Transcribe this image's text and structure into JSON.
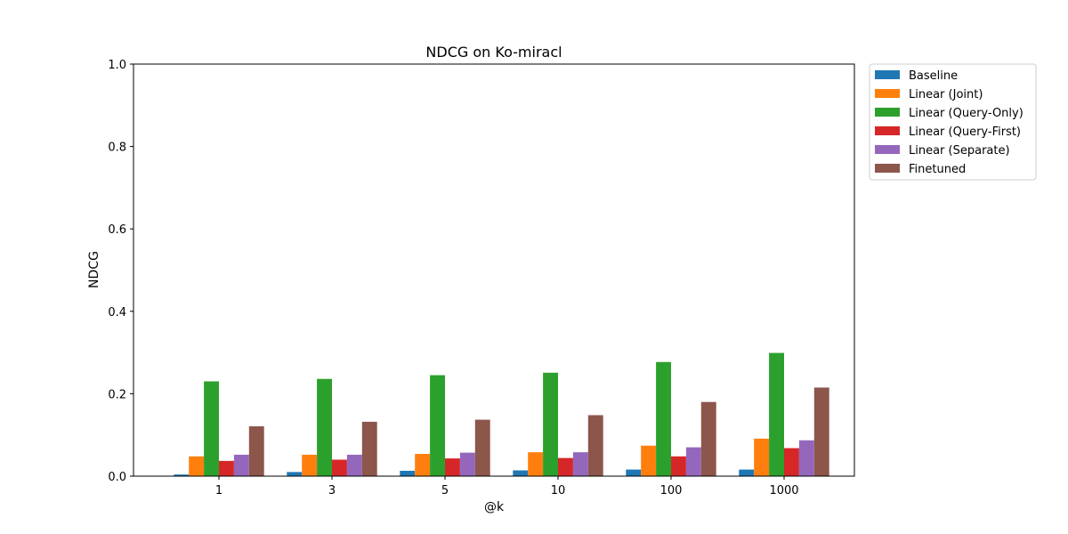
{
  "chart_data": {
    "type": "bar",
    "title": "NDCG on Ko-miracl",
    "xlabel": "@k",
    "ylabel": "NDCG",
    "ylim": [
      0,
      1.0
    ],
    "yticks": [
      "0.0",
      "0.2",
      "0.4",
      "0.6",
      "0.8",
      "1.0"
    ],
    "categories": [
      "1",
      "3",
      "5",
      "10",
      "100",
      "1000"
    ],
    "grid": false,
    "legend_position": "outside-top-right",
    "series": [
      {
        "name": "Baseline",
        "color": "#1f77b4",
        "values": [
          0.004,
          0.01,
          0.013,
          0.014,
          0.016,
          0.016
        ]
      },
      {
        "name": "Linear (Joint)",
        "color": "#ff7f0e",
        "values": [
          0.048,
          0.052,
          0.054,
          0.058,
          0.074,
          0.091
        ]
      },
      {
        "name": "Linear (Query-Only)",
        "color": "#2ca02c",
        "values": [
          0.23,
          0.236,
          0.245,
          0.251,
          0.277,
          0.299
        ]
      },
      {
        "name": "Linear (Query-First)",
        "color": "#d62728",
        "values": [
          0.037,
          0.04,
          0.043,
          0.044,
          0.048,
          0.068
        ]
      },
      {
        "name": "Linear (Separate)",
        "color": "#9467bd",
        "values": [
          0.052,
          0.052,
          0.057,
          0.058,
          0.07,
          0.087
        ]
      },
      {
        "name": "Finetuned",
        "color": "#8c564b",
        "values": [
          0.121,
          0.132,
          0.137,
          0.148,
          0.18,
          0.215
        ]
      }
    ]
  }
}
